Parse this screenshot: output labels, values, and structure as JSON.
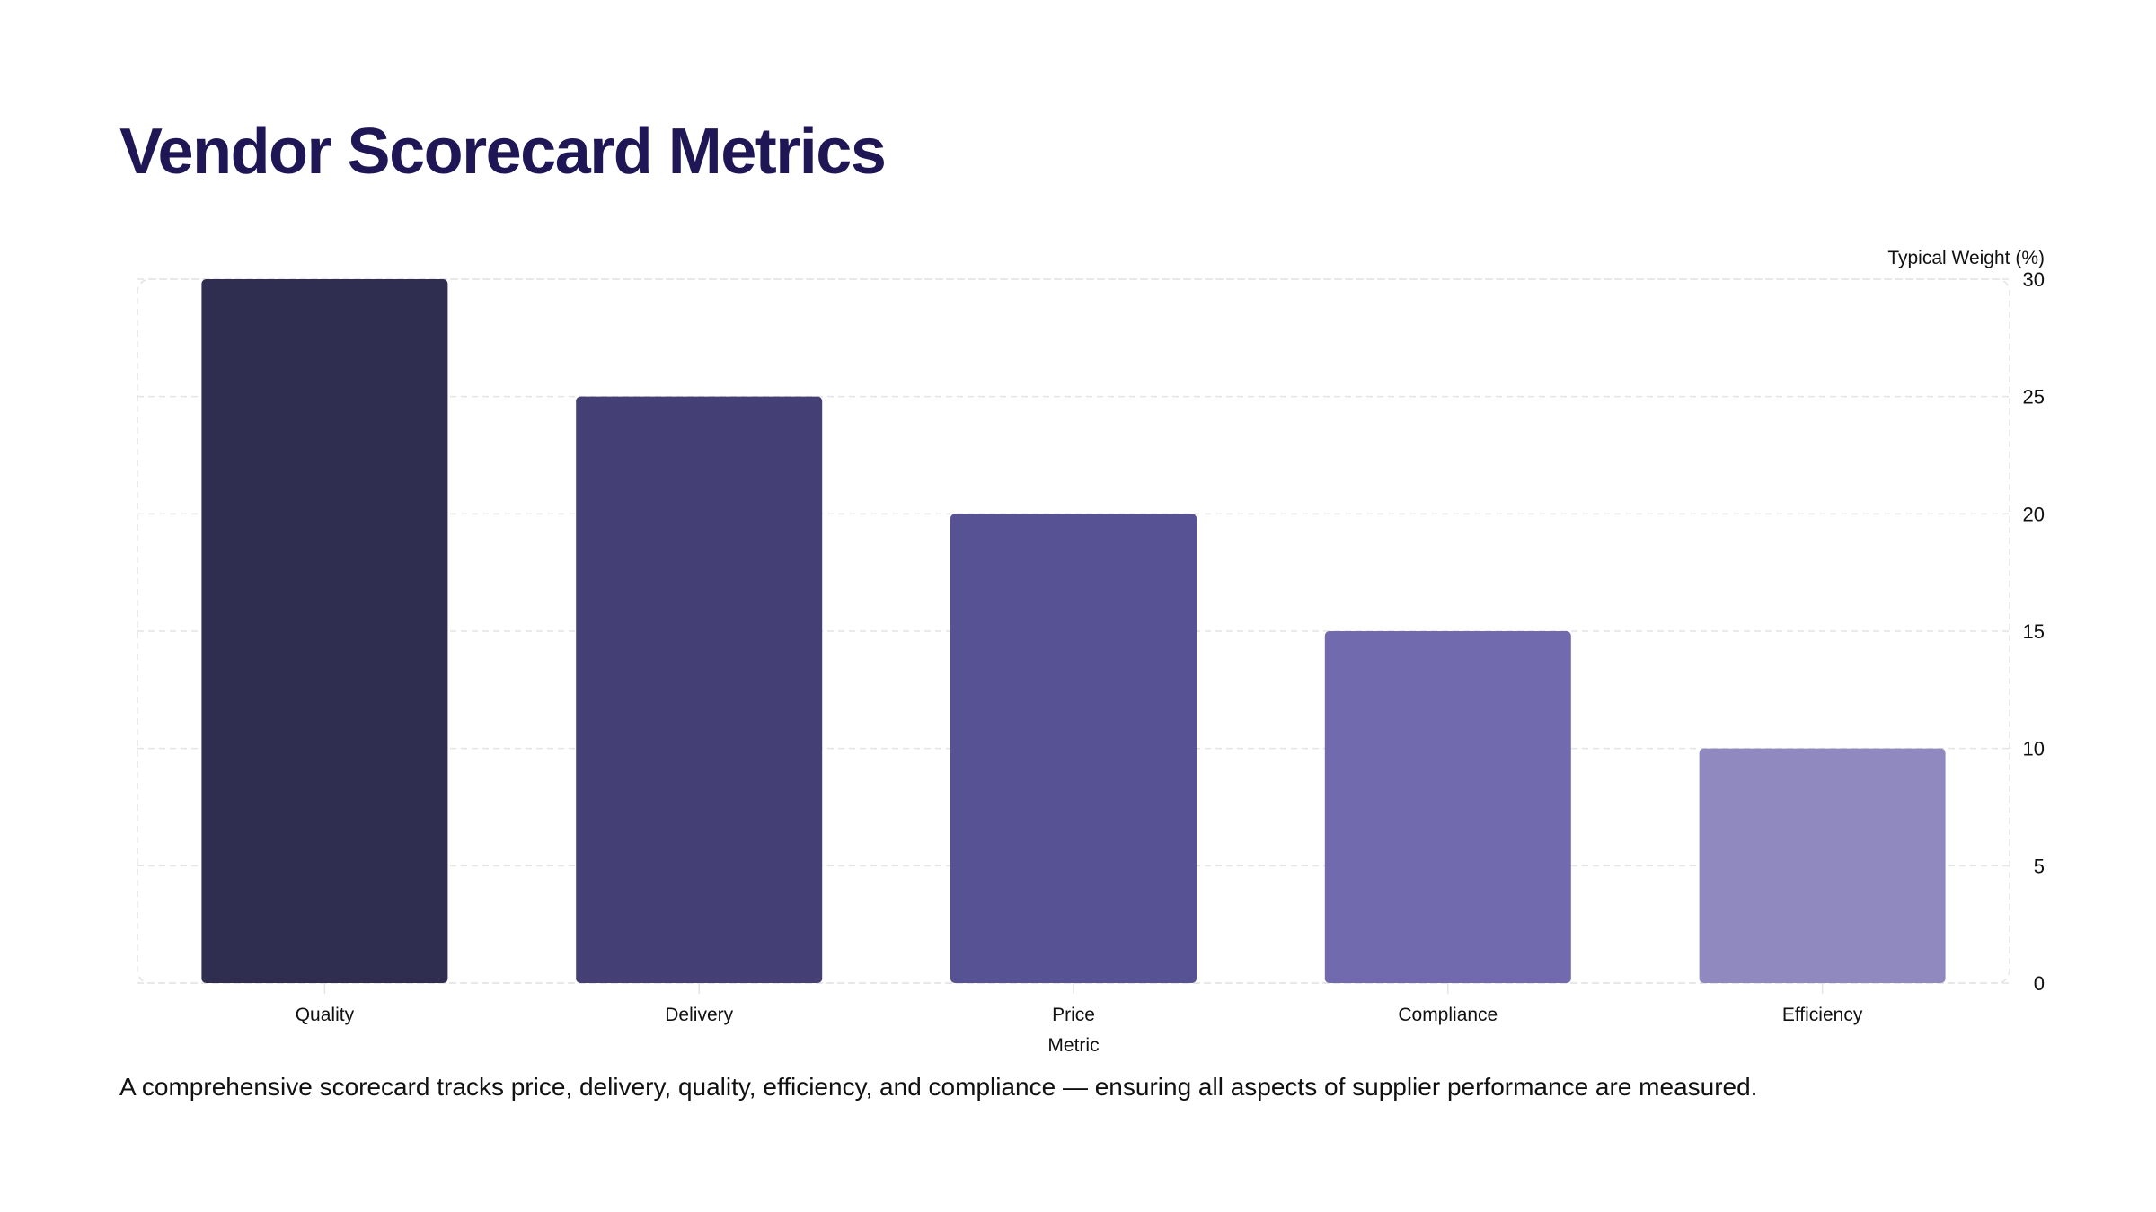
{
  "title": "Vendor Scorecard Metrics",
  "caption": "A comprehensive scorecard tracks price, delivery, quality, efficiency, and compliance — ensuring all aspects of supplier performance are measured.",
  "chart_data": {
    "type": "bar",
    "categories": [
      "Quality",
      "Delivery",
      "Price",
      "Compliance",
      "Efficiency"
    ],
    "values": [
      30,
      25,
      20,
      15,
      10
    ],
    "colors": [
      "#302e50",
      "#443f74",
      "#575294",
      "#716aae",
      "#8f89c0"
    ],
    "xlabel": "Metric",
    "ylabel": "Typical Weight (%)",
    "ylim": [
      0,
      30
    ],
    "yticks": [
      0,
      5,
      10,
      15,
      20,
      25,
      30
    ],
    "y_axis_position": "right",
    "grid": true
  }
}
